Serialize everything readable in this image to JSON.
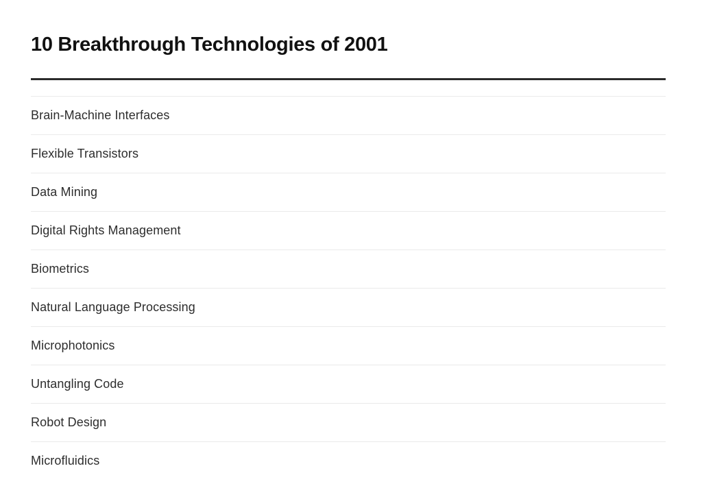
{
  "page": {
    "title": "10 Breakthrough Technologies of 2001"
  },
  "list": {
    "items": [
      {
        "label": "Brain-Machine Interfaces"
      },
      {
        "label": "Flexible Transistors"
      },
      {
        "label": "Data Mining"
      },
      {
        "label": "Digital Rights Management"
      },
      {
        "label": "Biometrics"
      },
      {
        "label": "Natural Language Processing"
      },
      {
        "label": "Microphotonics"
      },
      {
        "label": "Untangling Code"
      },
      {
        "label": "Robot Design"
      },
      {
        "label": "Microfluidics"
      }
    ]
  },
  "colors": {
    "background": "#ffffff",
    "title_text": "#111111",
    "title_rule": "#2b2b2b",
    "list_text": "#2d2d2d",
    "divider": "#eaeaea"
  }
}
